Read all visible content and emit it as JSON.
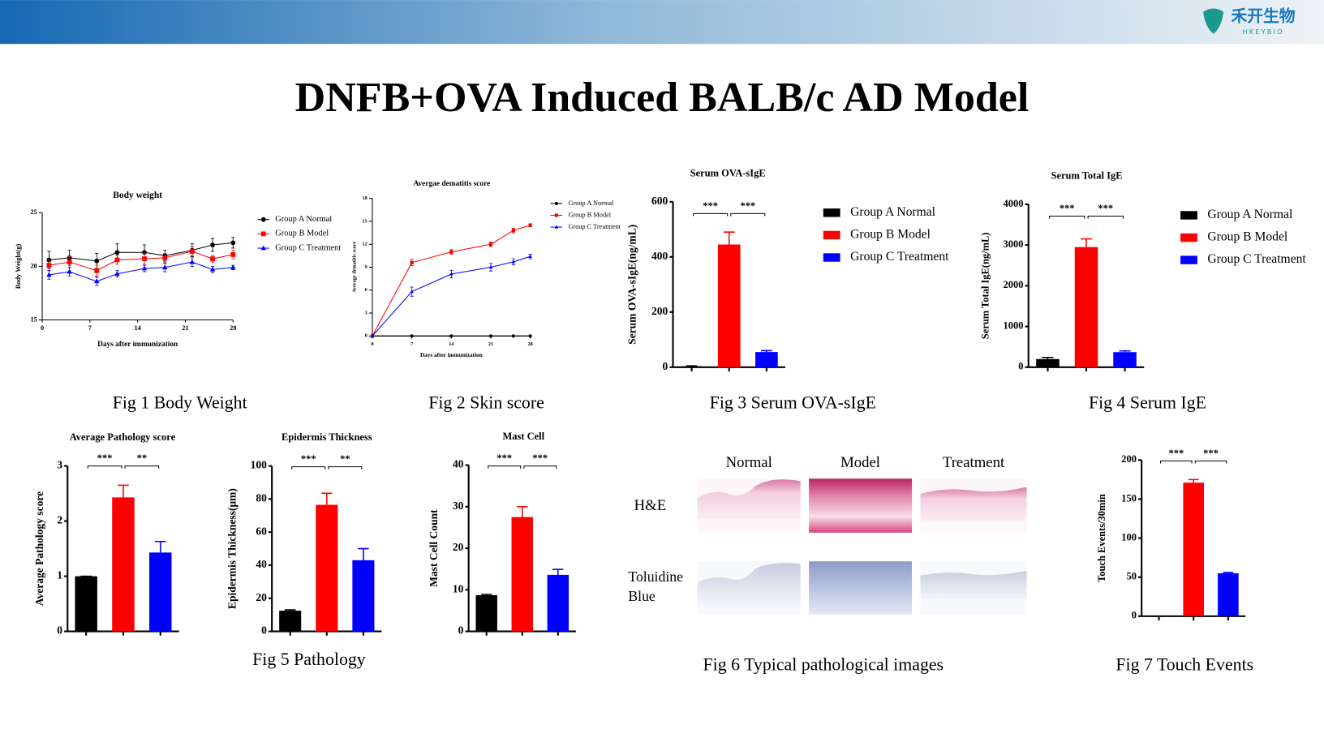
{
  "header": {
    "title": "DNFB+OVA Induced BALB/c AD Model",
    "logo_text": "禾开生物",
    "logo_subtext": "HKEYBIO"
  },
  "captions": [
    "Fig 1 Body Weight",
    "Fig 2 Skin score",
    "Fig 3 Serum OVA-sIgE",
    "Fig 4 Serum IgE",
    "Fig 5 Pathology",
    "Fig 6 Typical pathological images",
    "Fig 7 Touch Events"
  ],
  "images_panel": {
    "columns": [
      "Normal",
      "Model",
      "Treatment"
    ],
    "rows": [
      "H&E",
      "Toluidine Blue"
    ]
  },
  "chart_data": [
    {
      "type": "line",
      "title": "Body weight",
      "xlabel": "Days after immunization",
      "ylabel": "Body Weight(g)",
      "x": [
        1,
        4,
        8,
        11,
        15,
        18,
        22,
        25,
        28
      ],
      "xlim": [
        0,
        28
      ],
      "xticks": [
        0,
        7,
        14,
        21,
        28
      ],
      "ylim": [
        15,
        25
      ],
      "yticks": [
        15,
        20,
        25
      ],
      "series": [
        {
          "name": "Group A Normal",
          "color": "#000000",
          "values": [
            20.6,
            20.8,
            20.5,
            21.3,
            21.3,
            21.0,
            21.5,
            22.0,
            22.2
          ],
          "errors": [
            0.8,
            0.7,
            0.7,
            0.8,
            0.7,
            0.5,
            0.6,
            0.6,
            0.5
          ]
        },
        {
          "name": "Group B Model",
          "color": "#ff0000",
          "values": [
            20.1,
            20.4,
            19.6,
            20.6,
            20.7,
            20.8,
            21.4,
            20.7,
            21.1
          ],
          "errors": [
            0.5,
            0.5,
            0.5,
            0.4,
            0.5,
            0.4,
            0.4,
            0.3,
            0.4
          ]
        },
        {
          "name": "Group C Treatment",
          "color": "#0000ff",
          "values": [
            19.2,
            19.5,
            18.6,
            19.3,
            19.8,
            19.9,
            20.4,
            19.7,
            19.9
          ],
          "errors": [
            0.4,
            0.4,
            0.4,
            0.3,
            0.3,
            0.4,
            0.4,
            0.3,
            0.2
          ]
        }
      ]
    },
    {
      "type": "line",
      "title": "Avergae dematitis score",
      "xlabel": "Days after immunization",
      "ylabel": "Average dematitis score",
      "x": [
        0,
        7,
        14,
        21,
        25,
        28
      ],
      "xlim": [
        0,
        28
      ],
      "xticks": [
        0,
        7,
        14,
        21,
        28
      ],
      "ylim": [
        0,
        18
      ],
      "yticks": [
        0,
        3,
        6,
        9,
        12,
        15,
        18
      ],
      "series": [
        {
          "name": "Group A Normal",
          "color": "#000000",
          "values": [
            0,
            0,
            0,
            0,
            0,
            0
          ],
          "errors": [
            0,
            0,
            0,
            0,
            0,
            0
          ]
        },
        {
          "name": "Group B Model",
          "color": "#ff0000",
          "values": [
            0,
            9.6,
            11,
            12,
            13.8,
            14.5
          ],
          "errors": [
            0,
            0.4,
            0.3,
            0.3,
            0.3,
            0.2
          ]
        },
        {
          "name": "Group C Treatment",
          "color": "#0000ff",
          "values": [
            0,
            5.8,
            8.1,
            9,
            9.7,
            10.4
          ],
          "errors": [
            0,
            0.6,
            0.5,
            0.5,
            0.4,
            0.3
          ]
        }
      ]
    },
    {
      "type": "bar",
      "title": "Serum OVA-sIgE",
      "ylabel": "Serum OVA-sIgE(ng/mL)",
      "ylim": [
        0,
        600
      ],
      "yticks": [
        0,
        200,
        400,
        600
      ],
      "significance": [
        "***",
        "***"
      ],
      "series": [
        {
          "name": "Group A Normal",
          "color": "#000000",
          "values": [
            3
          ],
          "errors": [
            2
          ]
        },
        {
          "name": "Group B Model",
          "color": "#ff0000",
          "values": [
            445
          ],
          "errors": [
            45
          ]
        },
        {
          "name": "Group C Treatment",
          "color": "#0000ff",
          "values": [
            55
          ],
          "errors": [
            5
          ]
        }
      ]
    },
    {
      "type": "bar",
      "title": "Serum Total IgE",
      "ylabel": "Serum Total IgE(ng/mL)",
      "ylim": [
        0,
        4000
      ],
      "yticks": [
        0,
        1000,
        2000,
        3000,
        4000
      ],
      "significance": [
        "***",
        "***"
      ],
      "series": [
        {
          "name": "Group A Normal",
          "color": "#000000",
          "values": [
            200
          ],
          "errors": [
            40
          ]
        },
        {
          "name": "Group B Model",
          "color": "#ff0000",
          "values": [
            2950
          ],
          "errors": [
            200
          ]
        },
        {
          "name": "Group C Treatment",
          "color": "#0000ff",
          "values": [
            370
          ],
          "errors": [
            30
          ]
        }
      ]
    },
    {
      "type": "bar",
      "title": "Average Pathology score",
      "ylabel": "Average Pathology score",
      "ylim": [
        0,
        3
      ],
      "yticks": [
        0,
        1,
        2,
        3
      ],
      "significance": [
        "***",
        "**"
      ],
      "series": [
        {
          "color": "#000000",
          "values": [
            1.0
          ],
          "errors": [
            0
          ]
        },
        {
          "color": "#ff0000",
          "values": [
            2.43
          ],
          "errors": [
            0.22
          ]
        },
        {
          "color": "#0000ff",
          "values": [
            1.43
          ],
          "errors": [
            0.2
          ]
        }
      ]
    },
    {
      "type": "bar",
      "title": "Epidermis Thickness",
      "ylabel": "Epidermis Thickness(μm)",
      "ylim": [
        0,
        100
      ],
      "yticks": [
        0,
        20,
        40,
        60,
        80,
        100
      ],
      "significance": [
        "***",
        "**"
      ],
      "series": [
        {
          "color": "#000000",
          "values": [
            12.5
          ],
          "errors": [
            0.5
          ]
        },
        {
          "color": "#ff0000",
          "values": [
            76.5
          ],
          "errors": [
            7
          ]
        },
        {
          "color": "#0000ff",
          "values": [
            43
          ],
          "errors": [
            7
          ]
        }
      ]
    },
    {
      "type": "bar",
      "title": "Mast Cell",
      "ylabel": "Mast Cell Count",
      "ylim": [
        0,
        40
      ],
      "yticks": [
        0,
        10,
        20,
        30,
        40
      ],
      "significance": [
        "***",
        "***"
      ],
      "series": [
        {
          "color": "#000000",
          "values": [
            8.7
          ],
          "errors": [
            0.2
          ]
        },
        {
          "color": "#ff0000",
          "values": [
            27.5
          ],
          "errors": [
            2.5
          ]
        },
        {
          "color": "#0000ff",
          "values": [
            13.6
          ],
          "errors": [
            1.3
          ]
        }
      ]
    },
    {
      "type": "bar",
      "ylabel": "Touch Events/30min",
      "ylim": [
        0,
        200
      ],
      "yticks": [
        0,
        50,
        100,
        150,
        200
      ],
      "significance": [
        "***",
        "***"
      ],
      "series": [
        {
          "color": "#000000",
          "values": [
            0
          ],
          "errors": [
            0
          ]
        },
        {
          "color": "#ff0000",
          "values": [
            171
          ],
          "errors": [
            4
          ]
        },
        {
          "color": "#0000ff",
          "values": [
            55
          ],
          "errors": [
            1
          ]
        }
      ]
    }
  ]
}
